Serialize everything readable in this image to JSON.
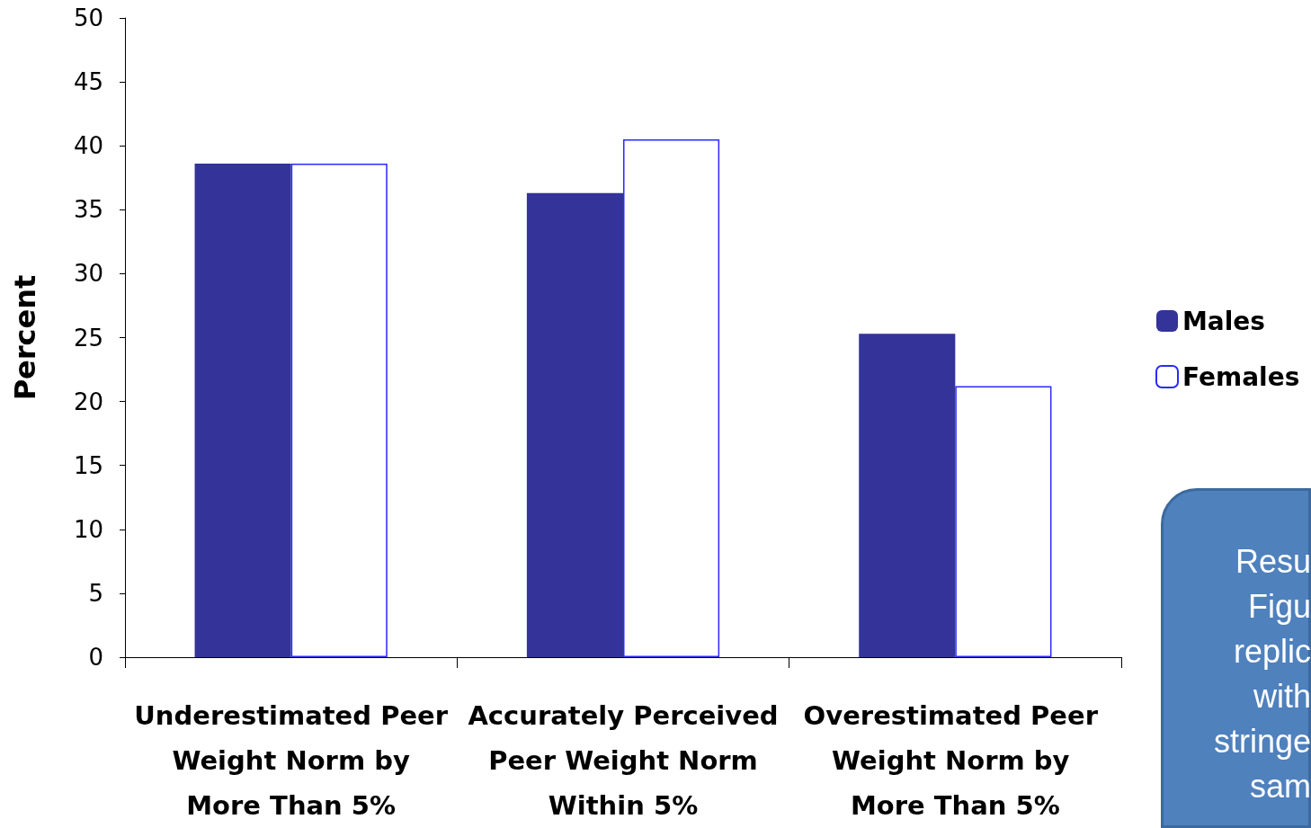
{
  "chart_data": {
    "type": "bar",
    "ylabel": "Percent",
    "categories": [
      "Underestimated Peer Weight Norm by More Than 5%",
      "Accurately Perceived Peer Weight Norm Within 5%",
      "Overestimated Peer Weight Norm by More Than 5%"
    ],
    "series": [
      {
        "name": "Males",
        "color": "#333399",
        "values": [
          38.6,
          36.3,
          25.3
        ]
      },
      {
        "name": "Females",
        "color": "#ffffff",
        "values": [
          38.6,
          40.5,
          21.2
        ]
      }
    ],
    "ylim": [
      0,
      50
    ],
    "yticks": [
      0,
      5,
      10,
      15,
      20,
      25,
      30,
      35,
      40,
      45,
      50
    ],
    "grid": false,
    "legend": "right",
    "annotations": [
      "Resu",
      "Figu",
      "replic",
      "with",
      "stringe",
      "sam"
    ]
  }
}
